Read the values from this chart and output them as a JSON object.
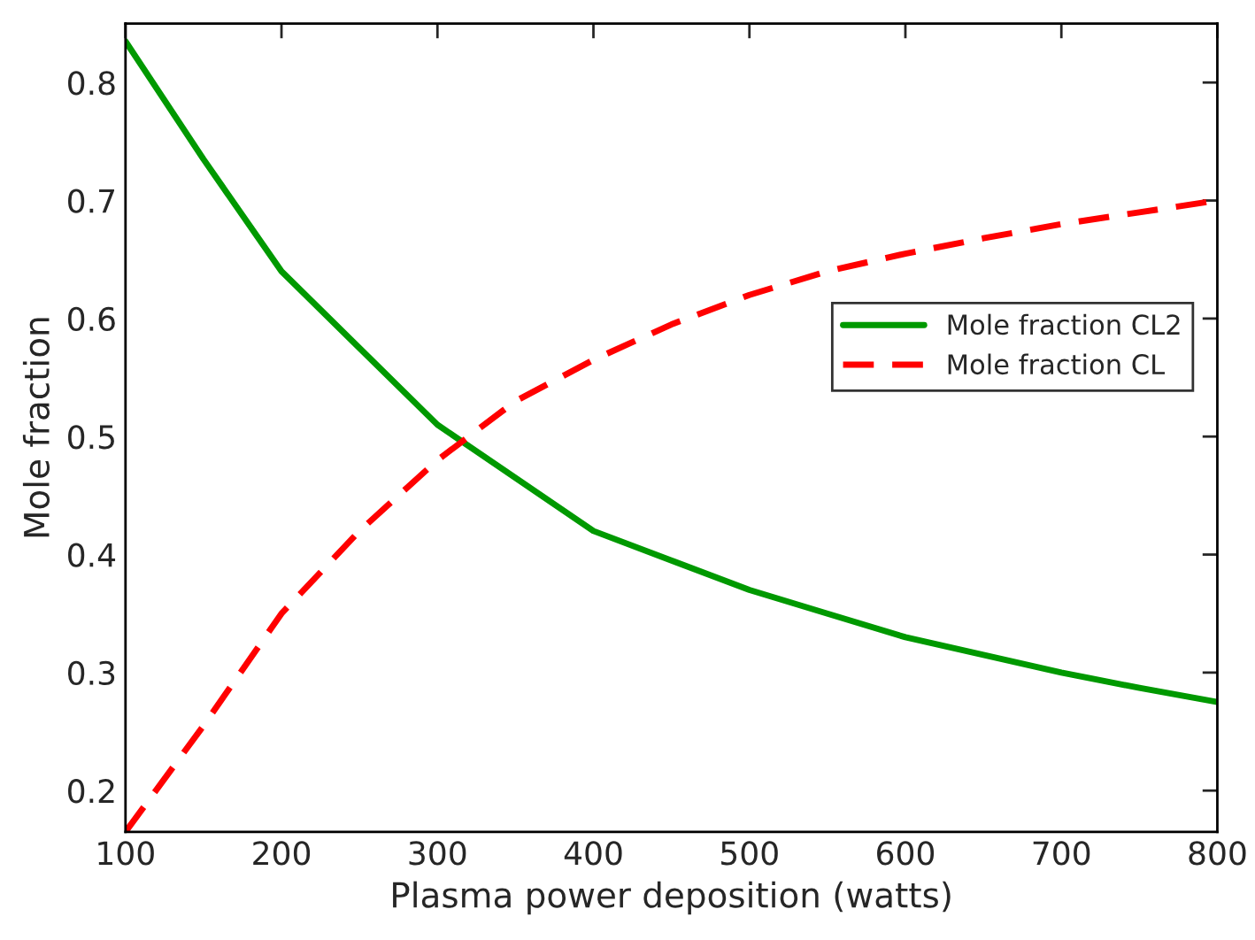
{
  "chart_data": {
    "type": "line",
    "xlabel": "Plasma power deposition (watts)",
    "ylabel": "Mole fraction",
    "x": [
      100,
      150,
      200,
      250,
      300,
      350,
      400,
      450,
      500,
      550,
      600,
      650,
      700,
      750,
      800
    ],
    "series": [
      {
        "name": "Mole fraction CL2",
        "color": "#009900",
        "line_style": "solid",
        "values": [
          0.835,
          0.735,
          0.64,
          0.575,
          0.51,
          0.465,
          0.42,
          0.395,
          0.37,
          0.35,
          0.33,
          0.315,
          0.3,
          0.287,
          0.275
        ]
      },
      {
        "name": "Mole fraction CL",
        "color": "#ff0000",
        "line_style": "dashed",
        "values": [
          0.165,
          0.255,
          0.35,
          0.42,
          0.48,
          0.53,
          0.565,
          0.595,
          0.62,
          0.64,
          0.655,
          0.668,
          0.68,
          0.69,
          0.7
        ]
      }
    ],
    "xlim": [
      100,
      800
    ],
    "ylim": [
      0.165,
      0.85
    ],
    "xticks": [
      100,
      200,
      300,
      400,
      500,
      600,
      700,
      800
    ],
    "yticks": [
      0.2,
      0.3,
      0.4,
      0.5,
      0.6,
      0.7,
      0.8
    ],
    "grid": false,
    "legend": "right",
    "marker": "none"
  }
}
